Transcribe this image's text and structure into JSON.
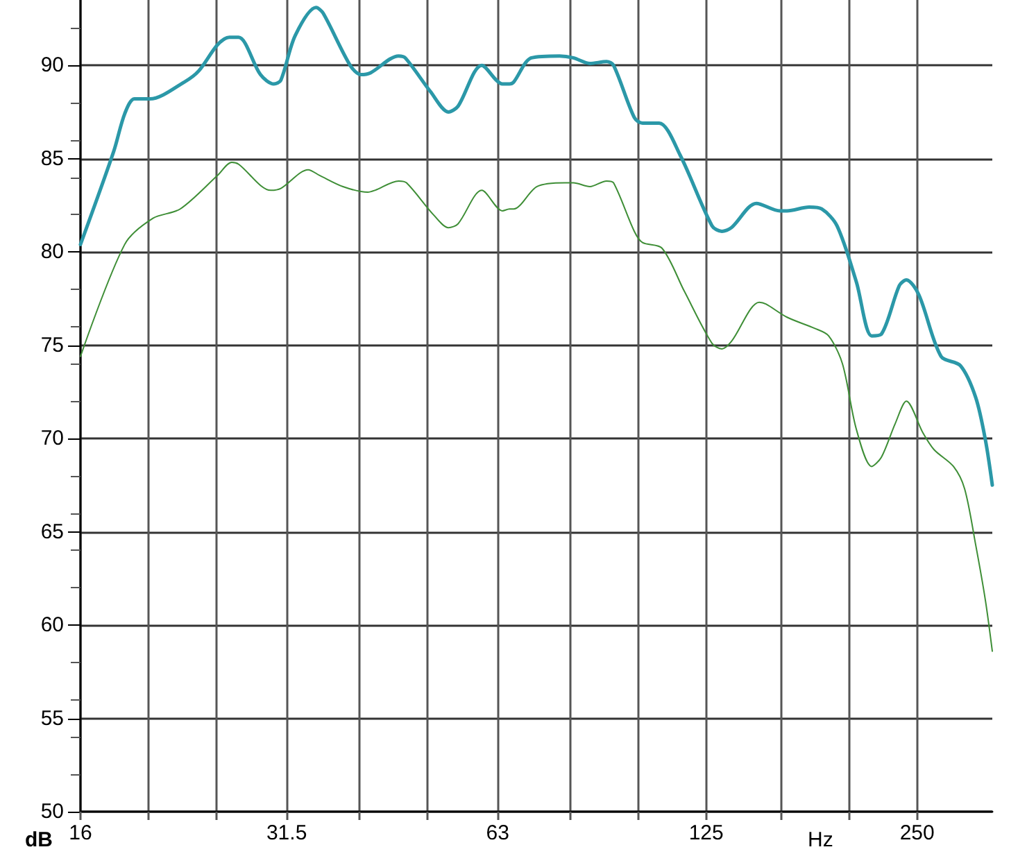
{
  "chart_data": {
    "type": "line",
    "xlabel": "Hz",
    "ylabel": "dB",
    "log": "x",
    "grid": true,
    "marker": "none",
    "line_style": "solid",
    "xlim": [
      16,
      320
    ],
    "ylim": [
      50,
      93.5
    ],
    "xticks": [
      16,
      {
        "value": 20,
        "label": null
      },
      {
        "value": 25,
        "label": null
      },
      31.5,
      {
        "value": 40,
        "label": null
      },
      {
        "value": 50,
        "label": null
      },
      63,
      {
        "value": 80,
        "label": null
      },
      {
        "value": 100,
        "label": null
      },
      125,
      {
        "value": 160,
        "label": null
      },
      {
        "value": 200,
        "label": null
      },
      250
    ],
    "yticks": [
      50,
      55,
      60,
      65,
      70,
      75,
      80,
      85,
      90
    ],
    "series": [
      {
        "color": "#2b98a8",
        "x": [
          16,
          17.85,
          18.5,
          19.1,
          20.1,
          22.5,
          23.6,
          25.1,
          26.1,
          26.9,
          28.9,
          30.2,
          30.9,
          32.4,
          34.7,
          35.5,
          38.8,
          40.2,
          41.5,
          45.5,
          46.5,
          50.5,
          53.6,
          55.3,
          59.8,
          64,
          65.5,
          66.4,
          70.4,
          77.2,
          80.8,
          85.3,
          90.1,
          92.2,
          98.7,
          101.4,
          107.1,
          114.7,
          127.4,
          131.6,
          135.8,
          147.4,
          159.3,
          163,
          175.3,
          182.7,
          192.1,
          204.7,
          215.3,
          222.3,
          235.8,
          241.3,
          251.4,
          270.4,
          288.2,
          303,
          312.9,
          320
        ],
        "values": [
          80.4,
          85.4,
          87.4,
          88.2,
          88.2,
          89.1,
          89.7,
          91.1,
          91.5,
          91.5,
          89.5,
          89.0,
          89.2,
          91.6,
          93.1,
          92.8,
          90.0,
          89.5,
          89.6,
          90.5,
          90.4,
          88.6,
          87.5,
          87.8,
          90.0,
          89.0,
          89.0,
          89.1,
          90.4,
          90.5,
          90.4,
          90.1,
          90.2,
          90.0,
          87.2,
          86.9,
          86.9,
          85.2,
          81.4,
          81.1,
          81.3,
          82.6,
          82.2,
          82.2,
          82.4,
          82.3,
          81.4,
          78.4,
          75.5,
          75.6,
          78.2,
          78.5,
          77.7,
          74.4,
          73.9,
          72.2,
          69.9,
          67.5
        ]
      },
      {
        "color": "#3e8e36",
        "x": [
          16,
          18.5,
          20.3,
          22.2,
          25.1,
          26.3,
          26.9,
          29.9,
          30.9,
          33.8,
          35.1,
          37.9,
          41.1,
          42.1,
          45.5,
          46.7,
          51,
          53.6,
          55.3,
          59.8,
          64,
          65.5,
          66.4,
          71.7,
          78.6,
          80.8,
          85.3,
          90.1,
          92.2,
          98.7,
          101.4,
          108.1,
          116.3,
          127.4,
          131.6,
          135.8,
          148.8,
          152.2,
          163,
          178.6,
          186.9,
          195.6,
          204.7,
          215.3,
          222.3,
          232.6,
          241.3,
          254.8,
          264.3,
          281.7,
          292.2,
          303,
          312.9,
          320
        ],
        "values": [
          74.4,
          80.4,
          81.8,
          82.3,
          84.1,
          84.8,
          84.7,
          83.3,
          83.4,
          84.4,
          84.1,
          83.5,
          83.2,
          83.3,
          83.8,
          83.7,
          82.0,
          81.3,
          81.5,
          83.3,
          82.2,
          82.3,
          82.3,
          83.5,
          83.7,
          83.7,
          83.5,
          83.8,
          83.7,
          81.1,
          80.5,
          80.2,
          77.9,
          75.1,
          74.8,
          75.2,
          77.3,
          77.2,
          76.5,
          75.9,
          75.5,
          74.0,
          70.5,
          68.5,
          69.0,
          70.8,
          72.0,
          70.3,
          69.4,
          68.5,
          67.3,
          64.3,
          61.3,
          58.6
        ]
      }
    ]
  }
}
